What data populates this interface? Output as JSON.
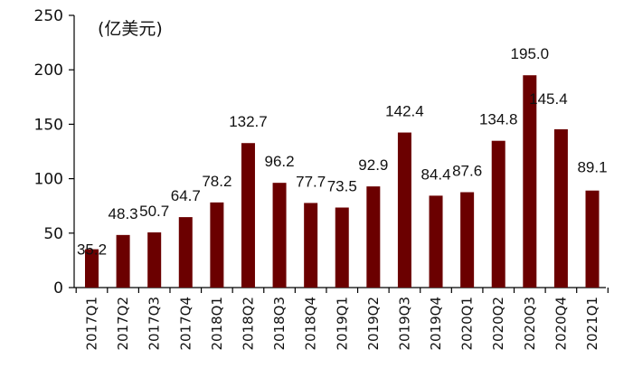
{
  "chart_data": {
    "type": "bar",
    "unit_label": "(亿美元)",
    "categories": [
      "2017Q1",
      "2017Q2",
      "2017Q3",
      "2017Q4",
      "2018Q1",
      "2018Q2",
      "2018Q3",
      "2018Q4",
      "2019Q1",
      "2019Q2",
      "2019Q3",
      "2019Q4",
      "2020Q1",
      "2020Q2",
      "2020Q3",
      "2020Q4",
      "2021Q1"
    ],
    "values": [
      35.2,
      48.3,
      50.7,
      64.7,
      78.2,
      132.7,
      96.2,
      77.7,
      73.5,
      92.9,
      142.4,
      84.4,
      87.6,
      134.8,
      195.0,
      145.4,
      89.1
    ],
    "value_labels": [
      "35.2",
      "48.3",
      "50.7",
      "64.7",
      "78.2",
      "132.7",
      "96.2",
      "77.7",
      "73.5",
      "92.9",
      "142.4",
      "84.4",
      "87.6",
      "134.8",
      "195.0",
      "145.4",
      "89.1"
    ],
    "ylim": [
      0,
      250
    ],
    "yticks": [
      0,
      50,
      100,
      150,
      200,
      250
    ],
    "grid": false,
    "legend": false,
    "bar_color": "#6b0000"
  }
}
